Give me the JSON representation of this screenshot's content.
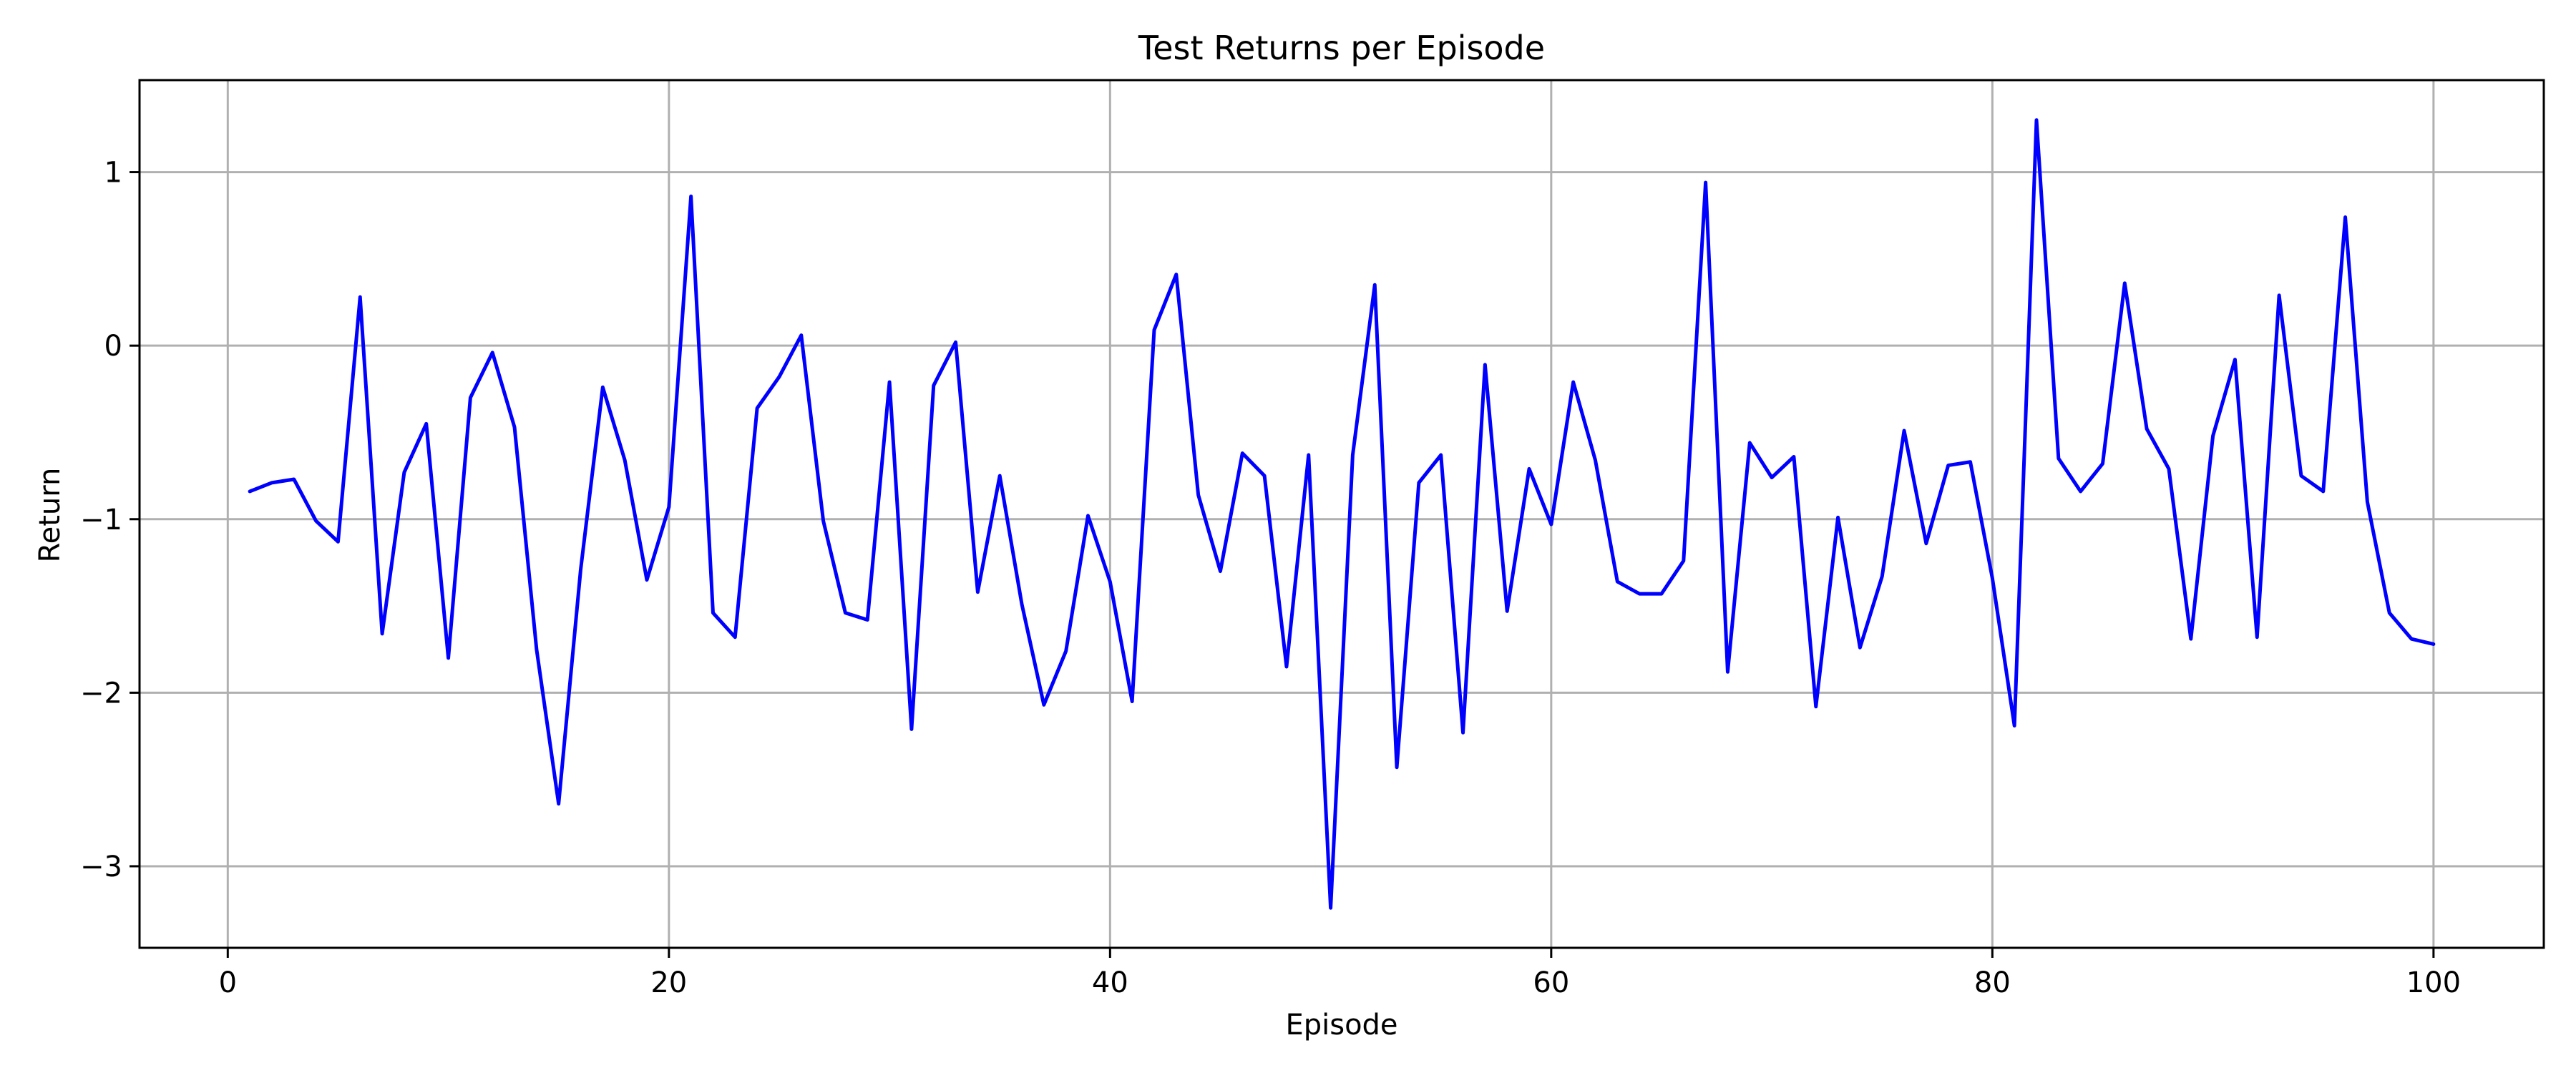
{
  "chart_data": {
    "type": "line",
    "title": "Test Returns per Episode",
    "xlabel": "Episode",
    "ylabel": "Return",
    "xlim": [
      -4,
      105
    ],
    "ylim": [
      -3.47,
      1.53
    ],
    "xticks": [
      0,
      20,
      40,
      60,
      80,
      100
    ],
    "yticks": [
      -3,
      -2,
      -1,
      0,
      1
    ],
    "grid": true,
    "line_color": "#0000ff",
    "x": [
      1,
      2,
      3,
      4,
      5,
      6,
      7,
      8,
      9,
      10,
      11,
      12,
      13,
      14,
      15,
      16,
      17,
      18,
      19,
      20,
      21,
      22,
      23,
      24,
      25,
      26,
      27,
      28,
      29,
      30,
      31,
      32,
      33,
      34,
      35,
      36,
      37,
      38,
      39,
      40,
      41,
      42,
      43,
      44,
      45,
      46,
      47,
      48,
      49,
      50,
      51,
      52,
      53,
      54,
      55,
      56,
      57,
      58,
      59,
      60,
      61,
      62,
      63,
      64,
      65,
      66,
      67,
      68,
      69,
      70,
      71,
      72,
      73,
      74,
      75,
      76,
      77,
      78,
      79,
      80,
      81,
      82,
      83,
      84,
      85,
      86,
      87,
      88,
      89,
      90,
      91,
      92,
      93,
      94,
      95,
      96,
      97,
      98,
      99,
      100
    ],
    "y": [
      -0.84,
      -0.79,
      -0.77,
      -1.01,
      -1.13,
      0.28,
      -1.66,
      -0.73,
      -0.45,
      -1.8,
      -0.3,
      -0.04,
      -0.47,
      -1.75,
      -2.64,
      -1.29,
      -0.24,
      -0.66,
      -1.35,
      -0.93,
      0.86,
      -1.54,
      -1.68,
      -0.36,
      -0.18,
      0.06,
      -1.01,
      -1.54,
      -1.58,
      -0.21,
      -2.21,
      -0.23,
      0.02,
      -1.42,
      -0.75,
      -1.49,
      -2.07,
      -1.76,
      -0.98,
      -1.36,
      -2.05,
      0.09,
      0.41,
      -0.86,
      -1.3,
      -0.62,
      -0.75,
      -1.85,
      -0.63,
      -3.24,
      -0.63,
      0.35,
      -2.43,
      -0.79,
      -0.63,
      -2.23,
      -0.11,
      -1.53,
      -0.71,
      -1.03,
      -0.21,
      -0.66,
      -1.36,
      -1.43,
      -1.43,
      -1.24,
      0.94,
      -1.88,
      -0.56,
      -0.76,
      -0.64,
      -2.08,
      -0.99,
      -1.74,
      -1.33,
      -0.49,
      -1.14,
      -0.69,
      -0.67,
      -1.34,
      -2.19,
      1.3,
      -0.65,
      -0.84,
      -0.68,
      0.36,
      -0.48,
      -0.71,
      -1.69,
      -0.52,
      -0.08,
      -1.68,
      0.29,
      -0.75,
      -0.84,
      0.74,
      -0.9,
      -1.54,
      -1.69,
      -1.72
    ]
  }
}
